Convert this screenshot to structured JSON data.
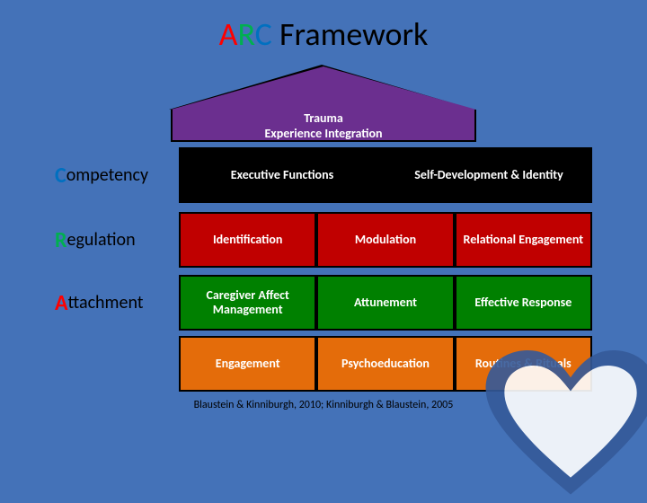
{
  "title": {
    "a": "A",
    "r": "R",
    "c": "C",
    "rest": " Framework"
  },
  "roof": {
    "line1": "Trauma",
    "line2": "Experience Integration",
    "color": "#6b2f8f"
  },
  "rows": [
    {
      "label_letter": "C",
      "label_rest": "ompetency",
      "letter_color": "#0070c0",
      "cells": [
        {
          "text": "Executive Functions",
          "bg": "#000000",
          "span": 2
        },
        {
          "text": "Self-Development & Identity",
          "bg": "#000000",
          "span": 2
        }
      ]
    },
    {
      "label_letter": "R",
      "label_rest": "egulation",
      "letter_color": "#00b050",
      "cells": [
        {
          "text": "Identification",
          "bg": "#c00000"
        },
        {
          "text": "Modulation",
          "bg": "#c00000"
        },
        {
          "text": "Relational Engagement",
          "bg": "#c00000"
        }
      ]
    },
    {
      "label_letter": "A",
      "label_rest": "ttachment",
      "letter_color": "#ff0000",
      "cells": [
        {
          "text": "Caregiver Affect Management",
          "bg": "#008000"
        },
        {
          "text": "Attunement",
          "bg": "#008000"
        },
        {
          "text": "Effective Response",
          "bg": "#008000"
        }
      ]
    },
    {
      "label_letter": "",
      "label_rest": "",
      "letter_color": "",
      "cells": [
        {
          "text": "Engagement",
          "bg": "#e46c0a"
        },
        {
          "text": "Psychoeducation",
          "bg": "#e46c0a"
        },
        {
          "text": "Routines & Rituals",
          "bg": "#e46c0a"
        }
      ]
    }
  ],
  "citation": "Blaustein & Kinniburgh, 2010; Kinniburgh & Blaustein, 2005",
  "heart_colors": {
    "outer": "#355a9a",
    "inner": "#ffffff"
  }
}
